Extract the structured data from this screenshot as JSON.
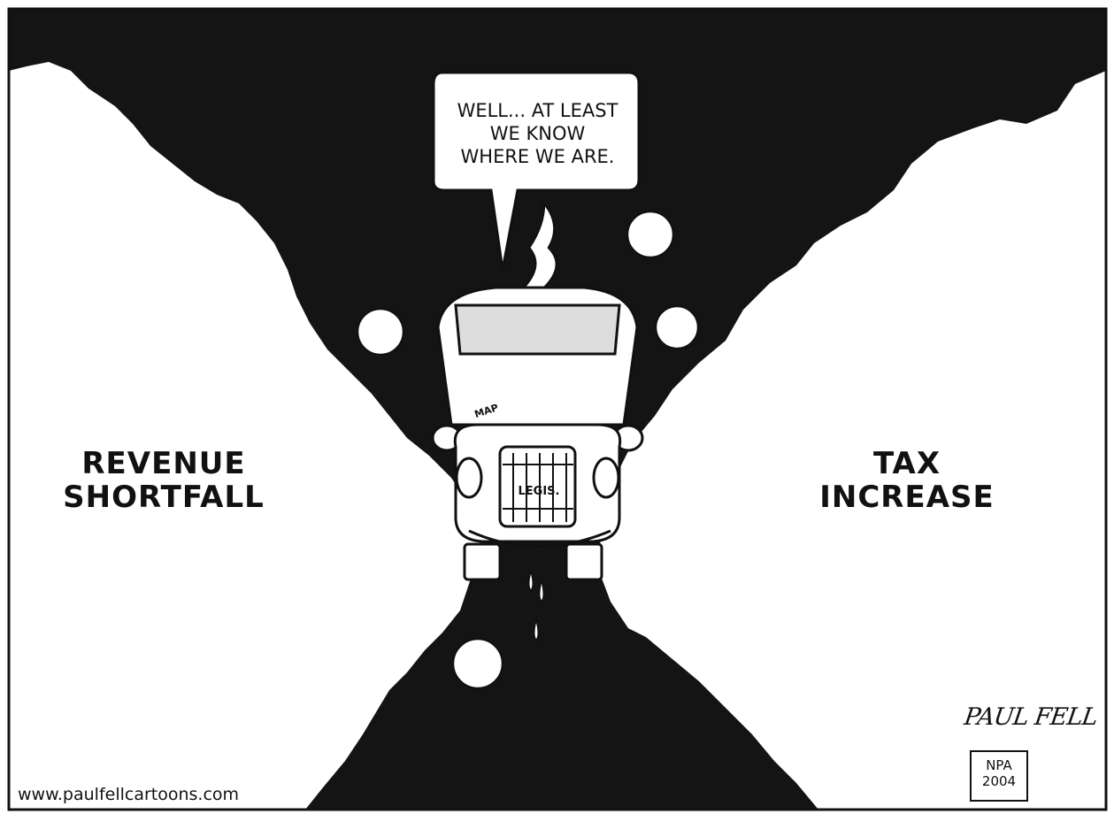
{
  "labels": {
    "left": [
      "REVENUE",
      "SHORTFALL"
    ],
    "right": [
      "TAX",
      "INCREASE"
    ]
  },
  "speech": {
    "lines": [
      "WELL... AT LEAST",
      "WE KNOW",
      "WHERE WE ARE."
    ]
  },
  "car": {
    "grille_label": "LEGIS.",
    "map_label": "MAP"
  },
  "credit": {
    "url": "www.paulfellcartoons.com",
    "signature": "PAUL FELL",
    "badge_lines": [
      "NPA",
      "2004"
    ]
  },
  "colors": {
    "ink": "#111111",
    "paper": "#ffffff"
  }
}
